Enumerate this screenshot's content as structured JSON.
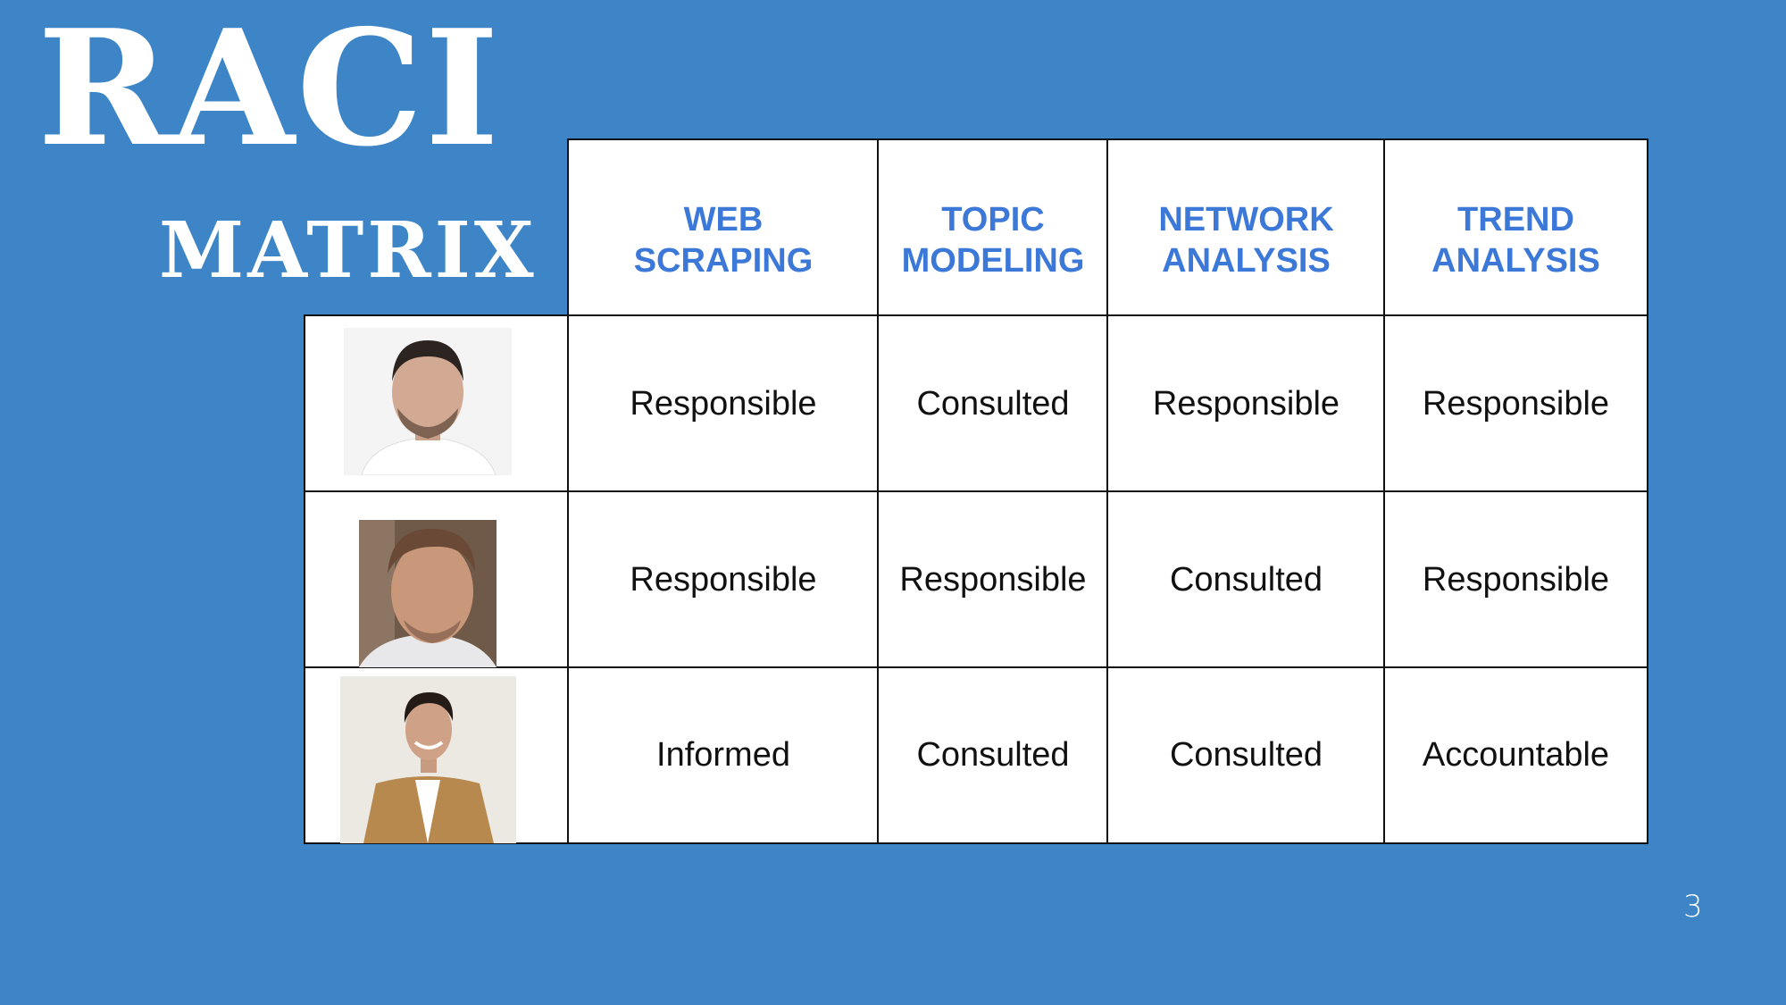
{
  "slide": {
    "title": "RACI",
    "subtitle": "MATRIX",
    "page_number": "3"
  },
  "matrix": {
    "columns": [
      "WEB\nSCRAPING",
      "TOPIC\nMODELING",
      "NETWORK\nANALYSIS",
      "TREND\nANALYSIS"
    ],
    "rows": [
      {
        "photo": "team-member-1-photo",
        "values": [
          "Responsible",
          "Consulted",
          "Responsible",
          "Responsible"
        ]
      },
      {
        "photo": "team-member-2-photo",
        "values": [
          "Responsible",
          "Responsible",
          "Consulted",
          "Responsible"
        ]
      },
      {
        "photo": "team-member-3-photo",
        "values": [
          "Informed",
          "Consulted",
          "Consulted",
          "Accountable"
        ]
      }
    ]
  },
  "colors": {
    "background": "#3d85c6",
    "header_text": "#3c78d8",
    "cell_background": "#ffffff",
    "border": "#111111"
  }
}
